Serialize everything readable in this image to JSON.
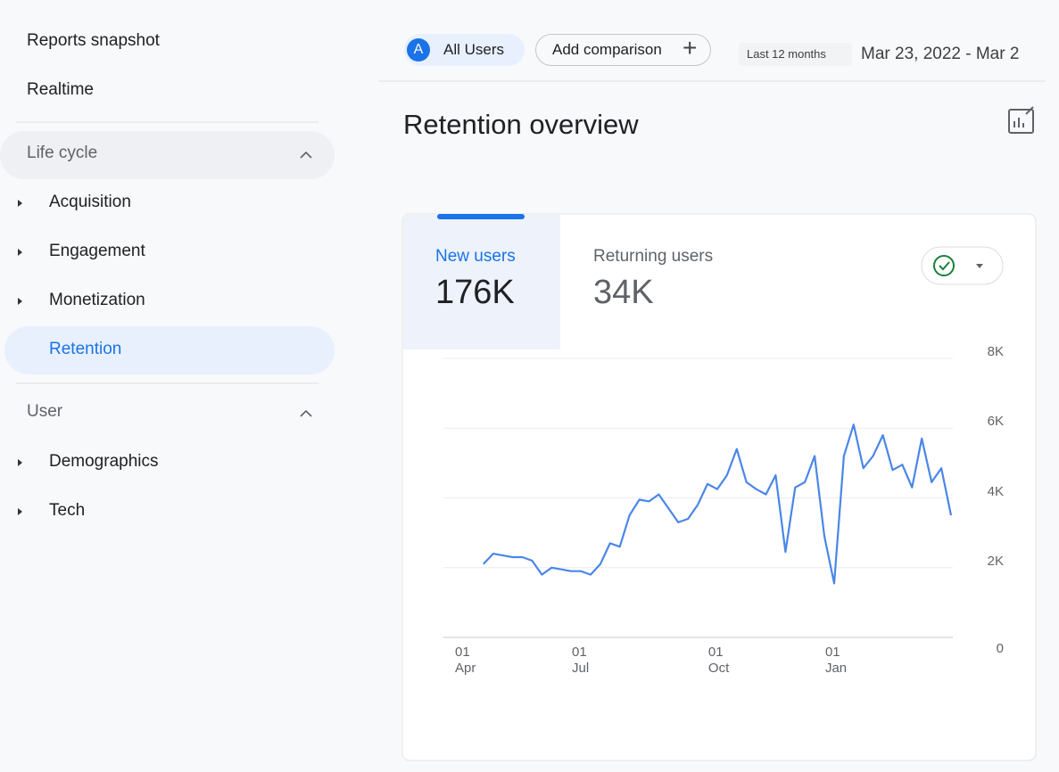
{
  "sidebar": {
    "items": [
      "Reports snapshot",
      "Realtime"
    ],
    "sections": [
      {
        "title": "Life cycle",
        "items": [
          "Acquisition",
          "Engagement",
          "Monetization",
          "Retention"
        ]
      },
      {
        "title": "User",
        "items": [
          "Demographics",
          "Tech"
        ]
      }
    ]
  },
  "toolbar": {
    "segment_initial": "A",
    "segment": "All Users",
    "add_comparison": "Add comparison",
    "range_label": "Last 12 months",
    "date_range": "Mar 23, 2022 - Mar 2"
  },
  "title": "Retention overview",
  "card": {
    "tabs": [
      {
        "label": "New users",
        "value": "176K"
      },
      {
        "label": "Returning users",
        "value": "34K"
      }
    ]
  },
  "chart_data": {
    "type": "line",
    "color": "#4a86e8",
    "categories": [
      "01 Apr",
      null,
      null,
      null,
      null,
      null,
      null,
      null,
      null,
      null,
      null,
      null,
      "01 Jul",
      null,
      null,
      null,
      null,
      null,
      null,
      null,
      null,
      null,
      null,
      null,
      null,
      null,
      "01 Oct",
      null,
      null,
      null,
      null,
      null,
      null,
      null,
      null,
      null,
      null,
      null,
      "01 Jan",
      null,
      null,
      null,
      null,
      null,
      null,
      null,
      null,
      null,
      null,
      null,
      null
    ],
    "values": [
      null,
      null,
      2100,
      2400,
      2350,
      2300,
      2300,
      2200,
      1800,
      2000,
      1950,
      1900,
      1900,
      1800,
      2100,
      2700,
      2600,
      3500,
      3950,
      3900,
      4100,
      3700,
      3300,
      3400,
      3800,
      4400,
      4250,
      4650,
      5400,
      4450,
      4250,
      4100,
      4650,
      2450,
      4300,
      4450,
      5200,
      2900,
      1550,
      5200,
      6100,
      4850,
      5200,
      5800,
      4800,
      4950,
      4300,
      5700,
      4450,
      4850,
      3500
    ],
    "ylim": [
      0,
      8000
    ],
    "yticks": [
      {
        "value": 0,
        "label": "0"
      },
      {
        "value": 2000,
        "label": "2K"
      },
      {
        "value": 4000,
        "label": "4K"
      },
      {
        "value": 6000,
        "label": "6K"
      },
      {
        "value": 8000,
        "label": "8K"
      }
    ],
    "grid": true
  }
}
